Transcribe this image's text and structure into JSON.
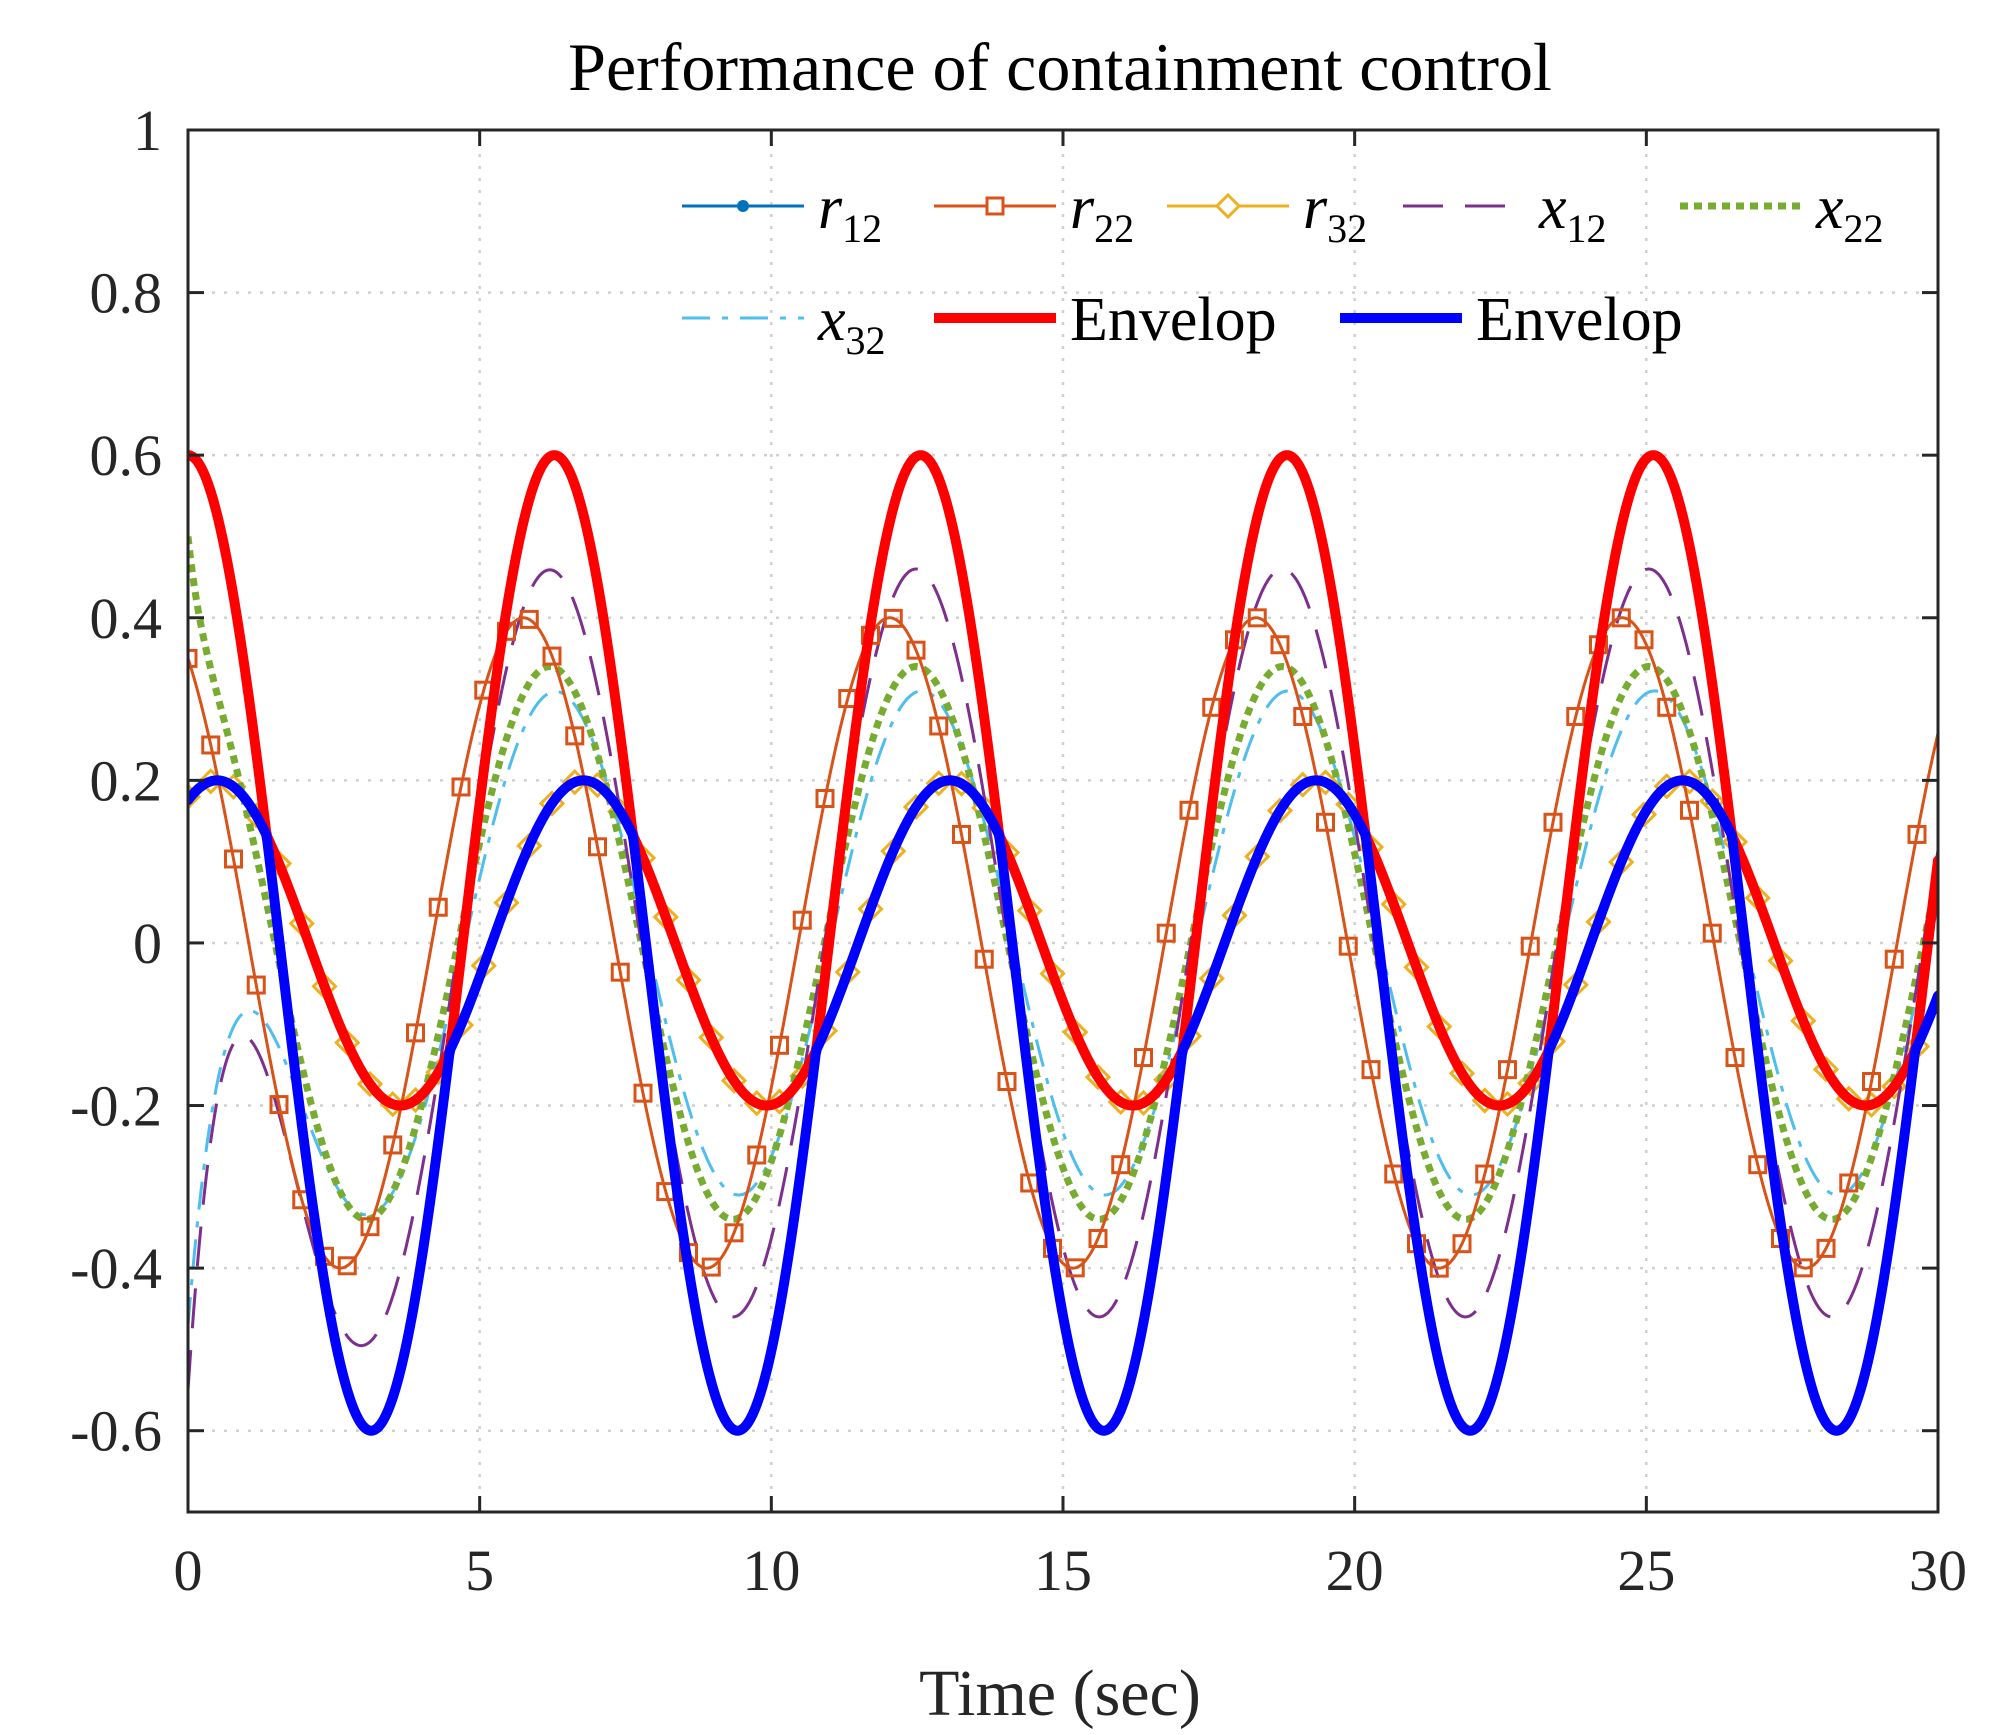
{
  "chart_data": {
    "type": "line",
    "title": "Performance of containment control",
    "xlabel": "Time (sec)",
    "ylabel": "",
    "xlim": [
      0,
      30
    ],
    "ylim": [
      -0.7,
      1
    ],
    "x_ticks": [
      0,
      5,
      10,
      15,
      20,
      25,
      30
    ],
    "y_ticks": [
      -0.6,
      -0.4,
      -0.2,
      0,
      0.2,
      0.4,
      0.6,
      0.8,
      1
    ],
    "x_tick_labels": [
      "0",
      "5",
      "10",
      "15",
      "20",
      "25",
      "30"
    ],
    "y_tick_labels": [
      "-0.6",
      "-0.4",
      "-0.2",
      "0",
      "0.2",
      "0.4",
      "0.6",
      "0.8",
      "1"
    ],
    "grid": true,
    "legend_position": "top-right",
    "period_sec": 6.28,
    "series": [
      {
        "key": "r12",
        "name": "r",
        "subscript": "12",
        "color": "#0072BD",
        "style": "solid-dot",
        "initial": 0.6,
        "amplitude": 0.6,
        "phase_peak_at": 0
      },
      {
        "key": "r22",
        "name": "r",
        "subscript": "22",
        "color": "#D95319",
        "style": "solid-square",
        "initial": 0.35,
        "amplitude": 0.4,
        "phase_peak_at": 5.75
      },
      {
        "key": "r32",
        "name": "r",
        "subscript": "32",
        "color": "#EDB120",
        "style": "solid-diamond",
        "initial": 0.18,
        "amplitude": 0.2,
        "phase_peak_at": 0.5
      },
      {
        "key": "x12",
        "name": "x",
        "subscript": "12",
        "color": "#7E2F8E",
        "style": "dashed",
        "initial": -0.55,
        "amplitude": 0.46,
        "phase_peak_at": 6.2
      },
      {
        "key": "x22",
        "name": "x",
        "subscript": "22",
        "color": "#77AC30",
        "style": "dotted",
        "initial": 0.5,
        "amplitude": 0.34,
        "phase_peak_at": 6.2
      },
      {
        "key": "x32",
        "name": "x",
        "subscript": "32",
        "color": "#4DBEEE",
        "style": "dashdot",
        "initial": -0.47,
        "amplitude": 0.31,
        "phase_peak_at": 6.3
      },
      {
        "key": "env_upper",
        "name": "Envelop",
        "subscript": "",
        "color": "#FF0000",
        "style": "thick",
        "peaks": [
          0.6,
          0.6,
          0.6,
          0.6,
          0.6
        ],
        "troughs": [
          -0.2,
          -0.2,
          -0.2,
          -0.2,
          -0.2
        ]
      },
      {
        "key": "env_lower",
        "name": "Envelop",
        "subscript": "",
        "color": "#0000FF",
        "style": "thick",
        "peaks": [
          0.2,
          0.2,
          0.2,
          0.2,
          0.2
        ],
        "troughs": [
          -0.6,
          -0.6,
          -0.6,
          -0.6,
          -0.6
        ]
      }
    ]
  }
}
